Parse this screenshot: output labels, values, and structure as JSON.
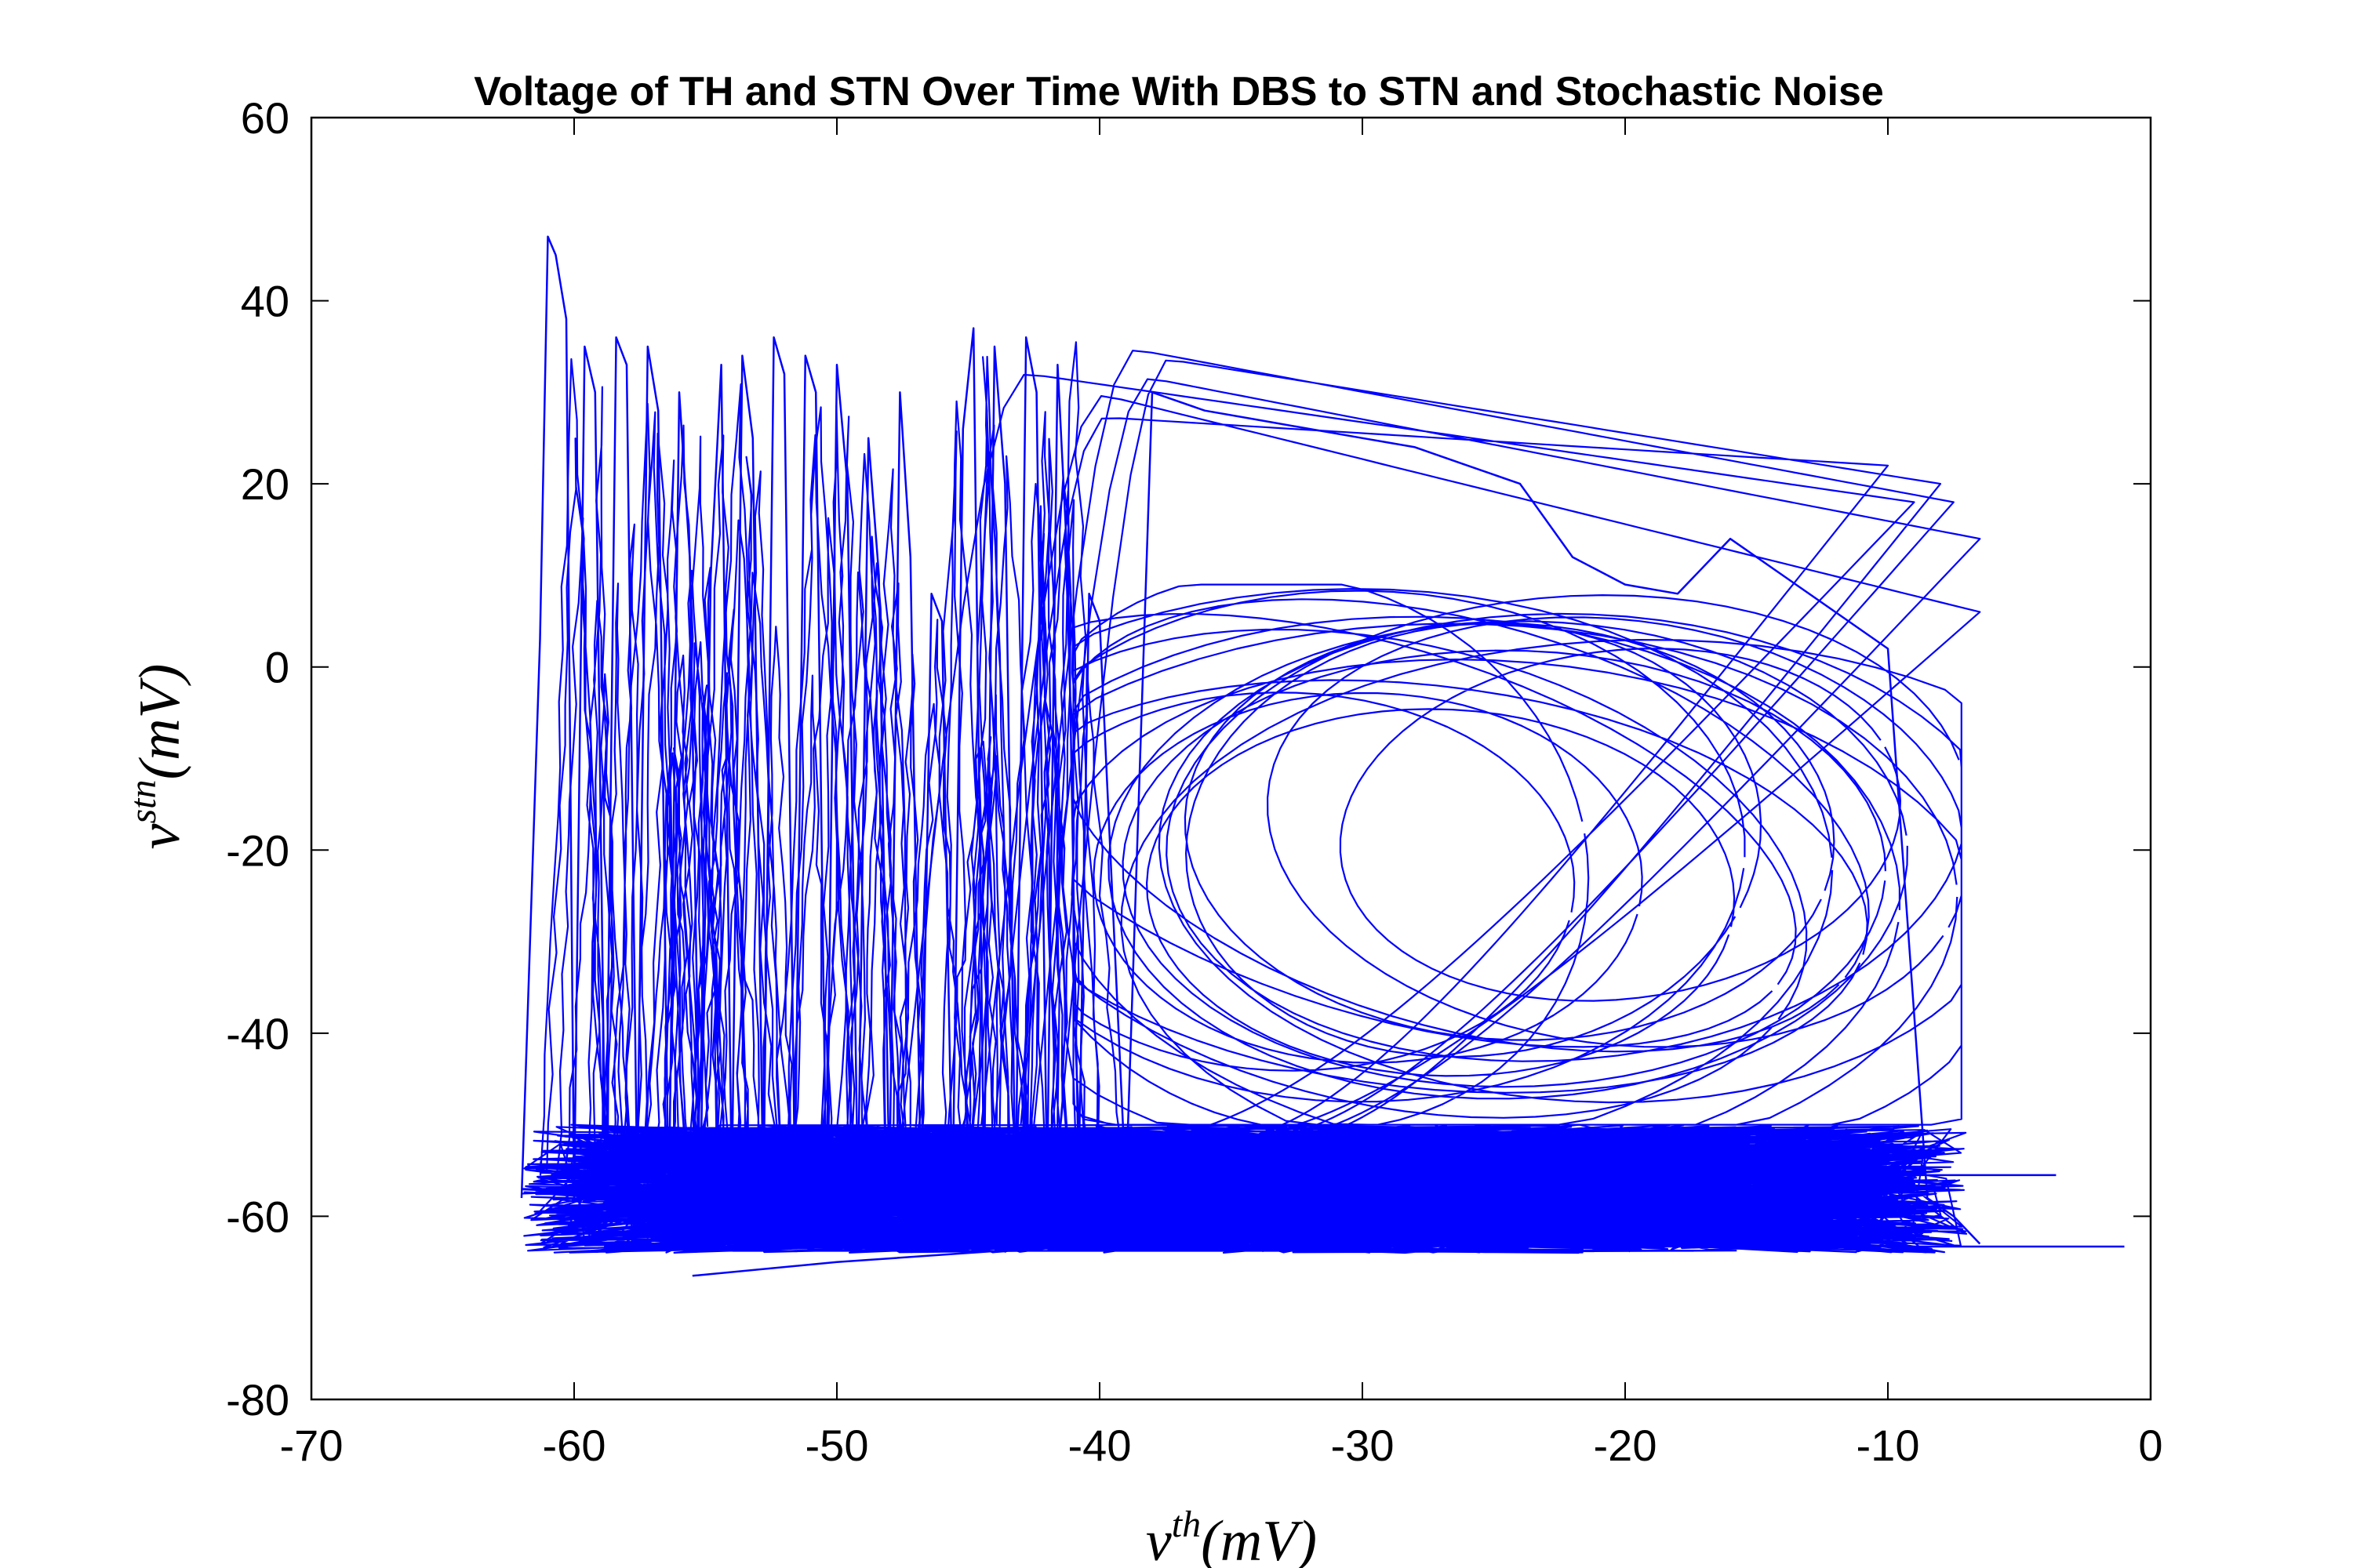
{
  "chart_data": {
    "type": "line",
    "title": "Voltage of TH and STN Over Time With DBS to STN and Stochastic Noise",
    "xlabel": {
      "base": "v",
      "sup": "th",
      "unit": "(mV)"
    },
    "ylabel": {
      "base": "v",
      "sup": "stn",
      "unit": "(mV)"
    },
    "xlim": [
      -70,
      0
    ],
    "ylim": [
      -80,
      60
    ],
    "xticks": [
      "-70",
      "-60",
      "-50",
      "-40",
      "-30",
      "-20",
      "-10",
      "0"
    ],
    "xtick_values": [
      -70,
      -60,
      -50,
      -40,
      -30,
      -20,
      -10,
      0
    ],
    "yticks": [
      "60",
      "40",
      "20",
      "0",
      "-20",
      "-40",
      "-60",
      "-80"
    ],
    "ytick_values": [
      60,
      40,
      20,
      0,
      -20,
      -40,
      -60,
      -80
    ],
    "grid": false,
    "line_color": "#0000ff",
    "series": [
      {
        "x": [
          -62.0,
          -61.3,
          -61.0,
          -60.7,
          -60.3,
          -60.0,
          -59.6,
          -59.2,
          -58.8,
          -58.4,
          -58.0,
          -57.6,
          -57.2,
          -56.8,
          -56.4,
          -56.0,
          -55.6,
          -55.2,
          -54.8,
          -54.4,
          -54.0,
          -53.6,
          -53.2,
          -52.8,
          -52.4,
          -52.0,
          -51.6,
          -51.2,
          -50.8,
          -50.4,
          -50.0,
          -49.6,
          -49.2,
          -48.8,
          -48.4,
          -48.0,
          -47.6,
          -47.2,
          -46.8,
          -46.4,
          -46.0,
          -45.6,
          -45.2,
          -44.8,
          -44.4,
          -44.0,
          -43.6,
          -43.2,
          -42.8,
          -42.4,
          -42.0,
          -41.6,
          -41.2,
          -40.8,
          -40.4,
          -40.0,
          -39.0,
          -38.0,
          -36.0,
          -34.0,
          -32.0,
          -30.0,
          -28.0,
          -26.0,
          -24.0,
          -22.0,
          -20.0,
          -18.0,
          -16.0,
          -14.0,
          -12.0,
          -10.0,
          -8.5,
          -7.5,
          -6.5
        ],
        "y": [
          -58,
          3,
          47,
          45,
          38,
          -58,
          35,
          30,
          -59,
          36,
          33,
          -57,
          35,
          28,
          -60,
          30,
          12,
          -58,
          10,
          33,
          -57,
          34,
          25,
          -59,
          36,
          32,
          -56,
          34,
          30,
          -59,
          33,
          20,
          -58,
          25,
          10,
          -57,
          30,
          12,
          -58,
          8,
          5,
          -59,
          26,
          37,
          -57,
          35,
          20,
          -58,
          36,
          30,
          -57,
          33,
          10,
          -56,
          8,
          5,
          -57,
          30,
          28,
          27,
          26,
          25,
          24,
          22,
          20,
          12,
          9,
          8,
          14,
          10,
          6,
          2,
          -58,
          -60,
          -63
        ]
      }
    ]
  }
}
